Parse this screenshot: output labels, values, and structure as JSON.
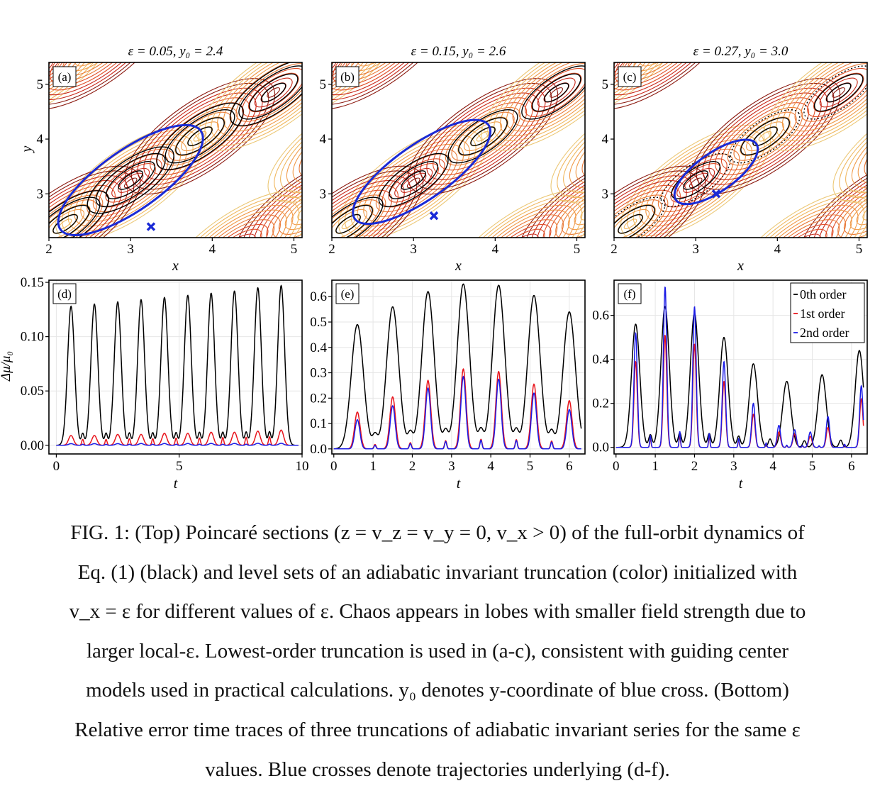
{
  "chart_data": [
    {
      "type": "contour",
      "panel": "(a)",
      "title": "ε = 0.05, y₀ = 2.4",
      "xlabel": "x",
      "ylabel": "y",
      "xlim": [
        2,
        5.1
      ],
      "ylim": [
        2.2,
        5.4
      ],
      "xticks": [
        2,
        3,
        4,
        5
      ],
      "yticks": [
        3,
        4,
        5
      ],
      "cross": {
        "x": 3.25,
        "y": 2.4
      },
      "orbit_center": [
        3.0,
        3.25
      ],
      "orbit_radii": [
        1.05,
        0.55
      ],
      "orbit_rotation_deg": -35,
      "grid": false
    },
    {
      "type": "contour",
      "panel": "(b)",
      "title": "ε = 0.15, y₀ = 2.6",
      "xlabel": "x",
      "ylabel": "",
      "xlim": [
        2,
        5.1
      ],
      "ylim": [
        2.2,
        5.4
      ],
      "xticks": [
        2,
        3,
        4,
        5
      ],
      "yticks": [
        3,
        4,
        5
      ],
      "cross": {
        "x": 3.25,
        "y": 2.6
      },
      "orbit_center": [
        3.1,
        3.4
      ],
      "orbit_radii": [
        1.0,
        0.5
      ],
      "orbit_rotation_deg": -35,
      "grid": false
    },
    {
      "type": "contour",
      "panel": "(c)",
      "title": "ε = 0.27, y₀ = 3.0",
      "xlabel": "x",
      "ylabel": "",
      "xlim": [
        2,
        5.1
      ],
      "ylim": [
        2.2,
        5.4
      ],
      "xticks": [
        2,
        3,
        4,
        5
      ],
      "yticks": [
        3,
        4,
        5
      ],
      "cross": {
        "x": 3.25,
        "y": 3.0
      },
      "orbit_center": [
        3.25,
        3.4
      ],
      "orbit_radii": [
        0.6,
        0.35
      ],
      "orbit_rotation_deg": -35,
      "grid": false
    },
    {
      "type": "line",
      "panel": "(d)",
      "xlabel": "t",
      "ylabel": "Δμ/μ₀",
      "xlim": [
        -0.3,
        10
      ],
      "ylim": [
        -0.008,
        0.152
      ],
      "xticks": [
        0,
        5,
        10
      ],
      "yticks": [
        0.0,
        0.05,
        0.1,
        0.15
      ],
      "ytick_labels": [
        "0.00",
        "0.05",
        "0.10",
        "0.15"
      ],
      "series": [
        {
          "name": "0th order",
          "color": "#000000",
          "peak_times": [
            0.6,
            1.55,
            2.5,
            3.45,
            4.4,
            5.35,
            6.3,
            7.25,
            8.2,
            9.15
          ],
          "peak_values": [
            0.128,
            0.13,
            0.132,
            0.134,
            0.136,
            0.138,
            0.14,
            0.142,
            0.145,
            0.147
          ],
          "sub_ratio": 0.08,
          "width": 0.2
        },
        {
          "name": "1st order",
          "color": "#e8141c",
          "peak_times": [
            0.6,
            1.55,
            2.5,
            3.45,
            4.4,
            5.35,
            6.3,
            7.25,
            8.2,
            9.15
          ],
          "peak_values": [
            0.009,
            0.009,
            0.01,
            0.01,
            0.011,
            0.011,
            0.012,
            0.012,
            0.013,
            0.014
          ],
          "sub_ratio": 0.6,
          "width": 0.14
        },
        {
          "name": "2nd order",
          "color": "#1c1ce6",
          "peak_times": [
            0.6,
            1.55,
            2.5,
            3.45,
            4.4,
            5.35,
            6.3,
            7.25,
            8.2,
            9.15
          ],
          "peak_values": [
            0.0015,
            0.0015,
            0.0015,
            0.0016,
            0.0016,
            0.0016,
            0.0017,
            0.0017,
            0.0018,
            0.0018
          ],
          "sub_ratio": 0.6,
          "width": 0.14
        }
      ],
      "grid": true
    },
    {
      "type": "line",
      "panel": "(e)",
      "xlabel": "t",
      "ylabel": "",
      "xlim": [
        -0.05,
        6.4
      ],
      "ylim": [
        -0.02,
        0.665
      ],
      "xticks": [
        0,
        1,
        2,
        3,
        4,
        5,
        6
      ],
      "yticks": [
        0.0,
        0.1,
        0.2,
        0.3,
        0.4,
        0.5,
        0.6
      ],
      "ytick_labels": [
        "0.0",
        "0.1",
        "0.2",
        "0.3",
        "0.4",
        "0.5",
        "0.6"
      ],
      "series": [
        {
          "name": "0th order",
          "color": "#000000",
          "peak_times": [
            0.6,
            1.5,
            2.4,
            3.3,
            4.2,
            5.1,
            6.0
          ],
          "peak_values": [
            0.49,
            0.56,
            0.62,
            0.65,
            0.645,
            0.605,
            0.54
          ],
          "sub_ratio": 0.1,
          "width": 0.22
        },
        {
          "name": "1st order",
          "color": "#e8141c",
          "peak_times": [
            0.6,
            1.5,
            2.4,
            3.3,
            4.2,
            5.1,
            6.0
          ],
          "peak_values": [
            0.145,
            0.205,
            0.27,
            0.315,
            0.305,
            0.255,
            0.19
          ],
          "sub_ratio": 0.12,
          "width": 0.1
        },
        {
          "name": "2nd order",
          "color": "#1c1ce6",
          "peak_times": [
            0.6,
            1.5,
            2.4,
            3.3,
            4.2,
            5.1,
            6.0
          ],
          "peak_values": [
            0.115,
            0.17,
            0.24,
            0.285,
            0.275,
            0.22,
            0.155
          ],
          "sub_ratio": 0.12,
          "width": 0.09
        }
      ],
      "grid": true
    },
    {
      "type": "line",
      "panel": "(f)",
      "xlabel": "t",
      "ylabel": "",
      "xlim": [
        -0.05,
        6.4
      ],
      "ylim": [
        -0.03,
        0.76
      ],
      "xticks": [
        0,
        1,
        2,
        3,
        4,
        5,
        6
      ],
      "yticks": [
        0.0,
        0.2,
        0.4,
        0.6
      ],
      "ytick_labels": [
        "0.0",
        "0.2",
        "0.4",
        "0.6"
      ],
      "series": [
        {
          "name": "0th order",
          "color": "#000000",
          "peak_times": [
            0.5,
            1.25,
            2.0,
            2.75,
            3.5,
            4.35,
            5.25,
            6.2
          ],
          "peak_values": [
            0.56,
            0.64,
            0.61,
            0.5,
            0.38,
            0.3,
            0.33,
            0.44
          ],
          "sub_ratio": 0.1,
          "width": 0.15
        },
        {
          "name": "1st order",
          "color": "#e8141c",
          "peak_times": [
            0.5,
            1.25,
            2.0,
            2.75,
            3.5,
            4.15,
            4.55,
            4.95,
            5.4,
            6.25
          ],
          "peak_values": [
            0.39,
            0.51,
            0.47,
            0.3,
            0.15,
            0.07,
            0.06,
            0.05,
            0.09,
            0.22
          ],
          "sub_ratio": 0.1,
          "width": 0.06
        },
        {
          "name": "2nd order",
          "color": "#1c1ce6",
          "peak_times": [
            0.5,
            1.25,
            2.0,
            2.75,
            3.5,
            4.15,
            4.55,
            4.95,
            5.4,
            6.25
          ],
          "peak_values": [
            0.52,
            0.73,
            0.64,
            0.39,
            0.2,
            0.1,
            0.08,
            0.07,
            0.14,
            0.28
          ],
          "sub_ratio": 0.1,
          "width": 0.06
        }
      ],
      "legend_position": "top-right",
      "legend_labels": [
        "0th order",
        "1st order",
        "2nd order"
      ],
      "grid": true
    }
  ],
  "caption_lines": [
    "FIG. 1: (Top) Poincaré sections (z = v_z = v_y = 0, v_x > 0) of the full-orbit dynamics of",
    "Eq. (1) (black) and level sets of an adiabatic invariant truncation (color)  initialized with",
    "v_x = ε for different values of ε. Chaos appears in lobes with smaller field strength due to",
    "larger local-ε.  Lowest-order truncation is used in (a-c), consistent with guiding center",
    "models used in practical calculations. y₀ denotes y-coordinate of blue cross. (Bottom)",
    "Relative error time traces of three truncations of adiabatic invariant series for the same ε",
    "values. Blue crosses denote trajectories underlying (d-f)."
  ],
  "colors": {
    "orbit": "#1a2ad6",
    "black_orbits": "#000000",
    "contour_dark": "#c8281a",
    "contour_light": "#f0c050"
  }
}
